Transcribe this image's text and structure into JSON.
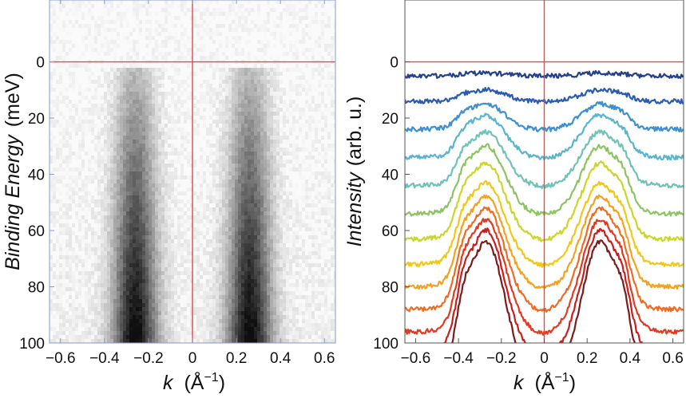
{
  "chart_data": [
    {
      "type": "heatmap",
      "title": "",
      "xlabel": {
        "symbol": "k",
        "unit": "(Å",
        "exp": "−1",
        "close": ")"
      },
      "ylabel": {
        "main": "Binding Energy",
        "unit": "(meV)"
      },
      "xlim": [
        -0.65,
        0.65
      ],
      "ylim": [
        -22,
        100
      ],
      "y_inverted": true,
      "x_ticks": [
        {
          "v": -0.6,
          "label": "−0.6"
        },
        {
          "v": -0.4,
          "label": "−0.4"
        },
        {
          "v": -0.2,
          "label": "−0.2"
        },
        {
          "v": 0,
          "label": "0"
        },
        {
          "v": 0.2,
          "label": "0.2"
        },
        {
          "v": 0.4,
          "label": "0.4"
        },
        {
          "v": 0.6,
          "label": "0.6"
        }
      ],
      "y_ticks": [
        {
          "v": 0,
          "label": "0"
        },
        {
          "v": 20,
          "label": "20"
        },
        {
          "v": 40,
          "label": "40"
        },
        {
          "v": 60,
          "label": "60"
        },
        {
          "v": 80,
          "label": "80"
        },
        {
          "v": 100,
          "label": "100"
        }
      ],
      "reference_lines": {
        "vertical_at_k": 0,
        "horizontal_at_energy": 0,
        "color": "#e8474a"
      },
      "colormap": "gray_r",
      "band_centers_k": [
        -0.26,
        0.26
      ],
      "frame_color": "#8899cc"
    },
    {
      "type": "line",
      "title": "",
      "xlabel": {
        "symbol": "k",
        "unit": "(Å",
        "exp": "−1",
        "close": ")"
      },
      "ylabel": {
        "main": "Intensity",
        "unit": "(arb. u.)"
      },
      "xlim": [
        -0.65,
        0.65
      ],
      "ylim": [
        -22,
        100
      ],
      "y_inverted": true,
      "x_ticks": [
        {
          "v": -0.6,
          "label": "−0.6"
        },
        {
          "v": -0.4,
          "label": "−0.4"
        },
        {
          "v": -0.2,
          "label": "−0.2"
        },
        {
          "v": 0,
          "label": "0"
        },
        {
          "v": 0.2,
          "label": "0.2"
        },
        {
          "v": 0.4,
          "label": "0.4"
        },
        {
          "v": 0.6,
          "label": "0.6"
        }
      ],
      "y_ticks": [
        {
          "v": 0,
          "label": "0"
        },
        {
          "v": 20,
          "label": "20"
        },
        {
          "v": 40,
          "label": "40"
        },
        {
          "v": 60,
          "label": "60"
        },
        {
          "v": 80,
          "label": "80"
        },
        {
          "v": 100,
          "label": "100"
        }
      ],
      "reference_lines": {
        "vertical_at_k": 0,
        "horizontal_at_energy": 0,
        "color": "#e8474a"
      },
      "series": [
        {
          "color": "#23408f",
          "baseline": 5,
          "peak": 4
        },
        {
          "color": "#2b5bb0",
          "baseline": 14,
          "peak": 10
        },
        {
          "color": "#3d8fd1",
          "baseline": 24,
          "peak": 15
        },
        {
          "color": "#5ab4cf",
          "baseline": 34,
          "peak": 19
        },
        {
          "color": "#6fc3b6",
          "baseline": 44,
          "peak": 25
        },
        {
          "color": "#8cc464",
          "baseline": 54,
          "peak": 30
        },
        {
          "color": "#c9d62a",
          "baseline": 63,
          "peak": 36
        },
        {
          "color": "#f2c818",
          "baseline": 72,
          "peak": 43
        },
        {
          "color": "#f5a11f",
          "baseline": 80,
          "peak": 48
        },
        {
          "color": "#f06a22",
          "baseline": 88,
          "peak": 52
        },
        {
          "color": "#e03a22",
          "baseline": 96,
          "peak": 56
        },
        {
          "color": "#c81e1e",
          "baseline": 104,
          "peak": 60
        },
        {
          "color": "#7a1c1c",
          "baseline": 113,
          "peak": 64
        }
      ],
      "peak_k": [
        -0.27,
        0.26
      ]
    }
  ]
}
